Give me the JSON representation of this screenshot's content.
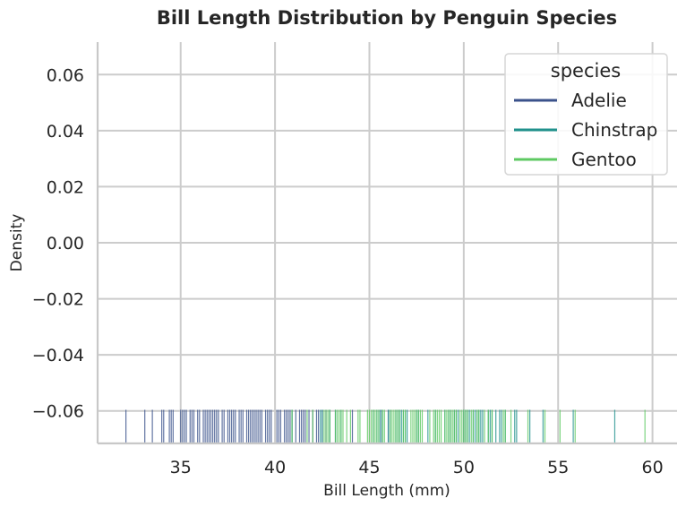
{
  "chart_data": {
    "type": "rug",
    "title": "Bill Length Distribution by Penguin Species",
    "xlabel": "Bill Length (mm)",
    "ylabel": "Density",
    "xlim": [
      30.6,
      61.3
    ],
    "ylim": [
      -0.0716,
      0.0716
    ],
    "x_ticks": [
      35,
      40,
      45,
      50,
      55,
      60
    ],
    "y_ticks": [
      -0.06,
      -0.04,
      -0.02,
      0.0,
      0.02,
      0.04,
      0.06
    ],
    "x_tick_labels": [
      "35",
      "40",
      "45",
      "50",
      "55",
      "60"
    ],
    "y_tick_labels": [
      "−0.06",
      "−0.04",
      "−0.02",
      "0.00",
      "0.02",
      "0.04",
      "0.06"
    ],
    "grid": true,
    "legend": {
      "title": "species",
      "placement": "top-right"
    },
    "rug_y_range": [
      -0.0716,
      -0.0596
    ],
    "series": [
      {
        "name": "Adelie",
        "color": "#3b528b",
        "values": [
          32.1,
          33.1,
          33.5,
          34.0,
          34.1,
          34.4,
          34.5,
          34.6,
          35.0,
          35.1,
          35.2,
          35.3,
          35.5,
          35.6,
          35.7,
          35.9,
          36.0,
          36.2,
          36.3,
          36.4,
          36.5,
          36.6,
          36.7,
          36.8,
          36.9,
          37.0,
          37.2,
          37.3,
          37.5,
          37.6,
          37.7,
          37.8,
          37.9,
          38.1,
          38.2,
          38.3,
          38.5,
          38.6,
          38.7,
          38.8,
          38.9,
          39.0,
          39.1,
          39.2,
          39.3,
          39.5,
          39.6,
          39.7,
          39.8,
          40.1,
          40.2,
          40.3,
          40.5,
          40.6,
          40.7,
          40.8,
          40.9,
          41.1,
          41.3,
          41.4,
          41.5,
          41.6,
          41.8,
          42.0,
          42.2,
          42.3,
          42.5,
          42.7,
          42.9,
          43.2,
          44.1,
          45.6,
          46.0
        ]
      },
      {
        "name": "Chinstrap",
        "color": "#21918c",
        "values": [
          40.9,
          42.4,
          42.5,
          42.9,
          43.2,
          43.5,
          45.2,
          45.4,
          45.5,
          45.6,
          45.7,
          46.0,
          46.1,
          46.4,
          46.5,
          46.6,
          46.7,
          46.8,
          46.9,
          47.0,
          47.5,
          47.6,
          48.1,
          48.5,
          49.0,
          49.2,
          49.3,
          49.5,
          49.6,
          49.7,
          50.0,
          50.1,
          50.2,
          50.3,
          50.5,
          50.6,
          50.7,
          50.8,
          50.9,
          51.0,
          51.3,
          51.4,
          51.5,
          51.7,
          51.9,
          52.0,
          52.2,
          52.7,
          52.8,
          53.5,
          54.2,
          55.8,
          58.0
        ]
      },
      {
        "name": "Gentoo",
        "color": "#5ec962",
        "values": [
          40.9,
          41.7,
          42.0,
          42.6,
          42.7,
          42.8,
          42.9,
          43.2,
          43.3,
          43.4,
          43.5,
          43.6,
          43.8,
          44.0,
          44.4,
          44.5,
          44.9,
          45.0,
          45.1,
          45.2,
          45.3,
          45.4,
          45.5,
          45.7,
          45.8,
          46.1,
          46.2,
          46.3,
          46.4,
          46.5,
          46.6,
          46.8,
          46.9,
          47.2,
          47.3,
          47.4,
          47.5,
          47.6,
          47.7,
          47.8,
          48.2,
          48.4,
          48.5,
          48.6,
          48.7,
          48.8,
          49.0,
          49.1,
          49.2,
          49.3,
          49.4,
          49.5,
          49.6,
          49.8,
          49.9,
          50.0,
          50.1,
          50.2,
          50.4,
          50.5,
          50.7,
          50.8,
          51.1,
          51.3,
          51.5,
          52.1,
          52.2,
          52.5,
          53.4,
          54.3,
          55.1,
          55.9,
          59.6
        ]
      }
    ]
  }
}
